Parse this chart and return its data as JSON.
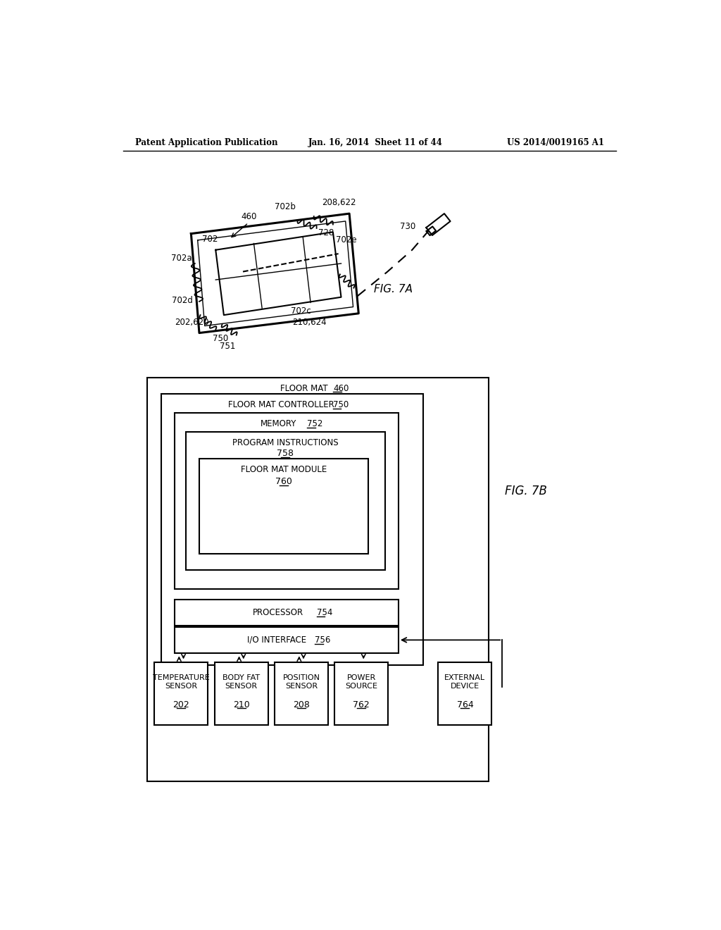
{
  "header_left": "Patent Application Publication",
  "header_mid": "Jan. 16, 2014  Sheet 11 of 44",
  "header_right": "US 2014/0019165 A1",
  "fig7a_label": "FIG. 7A",
  "fig7b_label": "FIG. 7B",
  "bg_color": "#ffffff",
  "text_color": "#000000",
  "fig7b_boxes": [
    {
      "label1": "TEMPERATURE",
      "label2": "SENSOR",
      "num": "202"
    },
    {
      "label1": "BODY FAT",
      "label2": "SENSOR",
      "num": "210"
    },
    {
      "label1": "POSITION",
      "label2": "SENSOR",
      "num": "208"
    },
    {
      "label1": "POWER",
      "label2": "SOURCE",
      "num": "762"
    },
    {
      "label1": "EXTERNAL",
      "label2": "DEVICE",
      "num": "764"
    }
  ]
}
